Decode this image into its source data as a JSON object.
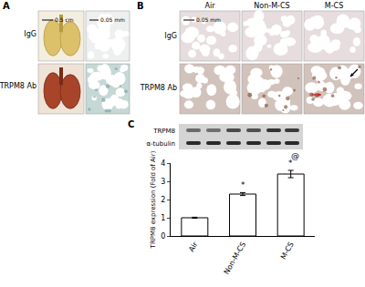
{
  "panels": {
    "A": {
      "label": "A",
      "rows": [
        "IgG",
        "TRPM8 Ab"
      ],
      "scale_bars": [
        "0.5 cm",
        "0.05 mm"
      ]
    },
    "B": {
      "label": "B",
      "columns": [
        "Air",
        "Non-M-CS",
        "M-CS"
      ],
      "rows": [
        "IgG",
        "TRPM8 Ab"
      ],
      "scale_bar": "0.05 mm"
    },
    "C": {
      "label": "C",
      "blot_rows": [
        "TRPM8",
        "α-tubulin"
      ]
    }
  },
  "chart_data": {
    "type": "bar",
    "categories": [
      "Air",
      "Non-M-CS",
      "M-CS"
    ],
    "values": [
      1.0,
      2.3,
      3.4
    ],
    "errors": [
      0.03,
      0.08,
      0.2
    ],
    "color": "#ffffff",
    "ylabel": "TRPM8 expression (Fold of Air)",
    "ylim": [
      0,
      4
    ],
    "yticks": [
      0,
      1,
      2,
      3,
      4
    ],
    "grid": false,
    "annotations": [
      {
        "category": "Non-M-CS",
        "text": "*"
      },
      {
        "category": "M-CS",
        "text": "*"
      },
      {
        "category": "M-CS",
        "text": "@"
      }
    ]
  }
}
